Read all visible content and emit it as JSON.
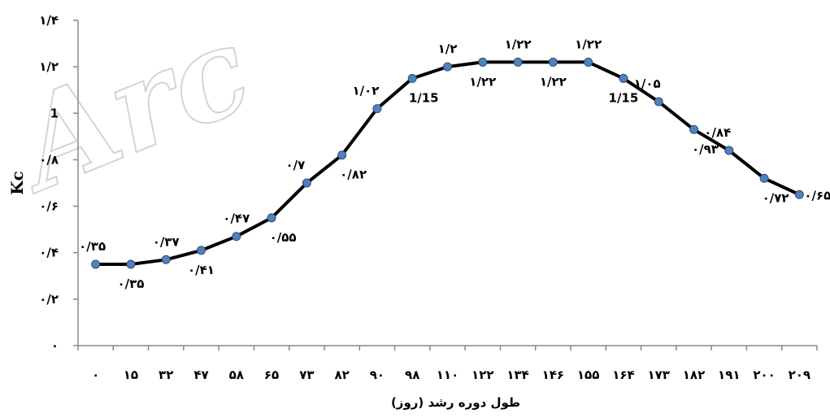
{
  "chart_data": {
    "type": "line",
    "title": "",
    "xlabel": "طول دوره رشد (روز)",
    "ylabel": "Kc",
    "ylim": [
      0,
      1.4
    ],
    "y_ticks": [
      0,
      0.2,
      0.4,
      0.6,
      0.8,
      1,
      1.2,
      1.4
    ],
    "y_tick_labels": [
      "۰",
      "۰/۲",
      "۰/۴",
      "۰/۶",
      "۰/۸",
      "1",
      "۱/۲",
      "۱/۴"
    ],
    "categories": [
      "۰",
      "۱۵",
      "۳۲",
      "۴۷",
      "۵۸",
      "۶۵",
      "۷۳",
      "۸۲",
      "۹۰",
      "۹۸",
      "۱۱۰",
      "۱۲۲",
      "۱۳۴",
      "۱۴۶",
      "۱۵۵",
      "۱۶۴",
      "۱۷۳",
      "۱۸۲",
      "۱۹۱",
      "۲۰۰",
      "۲۰۹"
    ],
    "x_values": [
      0,
      15,
      32,
      47,
      58,
      65,
      73,
      82,
      90,
      98,
      110,
      122,
      134,
      146,
      155,
      164,
      173,
      182,
      191,
      200,
      209
    ],
    "values": [
      0.35,
      0.35,
      0.37,
      0.41,
      0.47,
      0.55,
      0.7,
      0.82,
      1.02,
      1.15,
      1.2,
      1.22,
      1.22,
      1.22,
      1.22,
      1.15,
      1.05,
      0.93,
      0.84,
      0.72,
      0.65
    ],
    "data_labels": [
      "۰/۳۵",
      "۰/۳۵",
      "۰/۳۷",
      "۰/۴۱",
      "۰/۴۷",
      "۰/۵۵",
      "۰/۷",
      "۰/۸۲",
      "۱/۰۲",
      "1/15",
      "۱/۲",
      "۱/۲۲",
      "۱/۲۲",
      "۱/۲۲",
      "۱/۲۲",
      "1/15",
      "۱/۰۵",
      "۰/۹۳",
      "۰/۸۴",
      "۰/۷۲",
      "۰/۶۵"
    ],
    "grid": false,
    "legend": "none",
    "line_color": "#000000",
    "marker_color": "#4f81bd"
  },
  "watermark": {
    "text": "Arc"
  }
}
